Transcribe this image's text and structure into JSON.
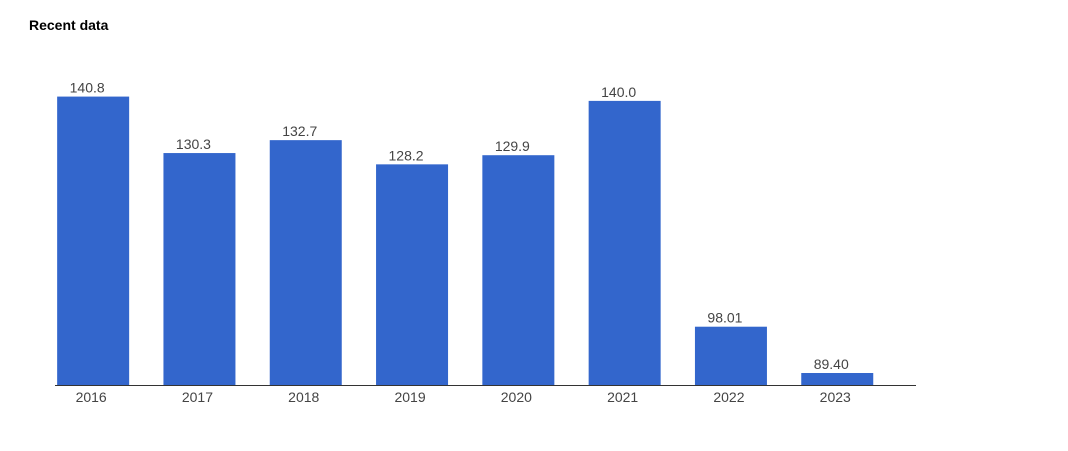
{
  "chart_data": {
    "type": "bar",
    "title": "Recent data",
    "categories": [
      "2016",
      "2017",
      "2018",
      "2019",
      "2020",
      "2021",
      "2022",
      "2023"
    ],
    "values": [
      140.8,
      130.3,
      132.7,
      128.2,
      129.9,
      140.0,
      98.01,
      89.4
    ],
    "value_labels": [
      "140.8",
      "130.3",
      "132.7",
      "128.2",
      "129.9",
      "140.0",
      "98.01",
      "89.40"
    ],
    "color": "#3366cc",
    "ylim": [
      87.17,
      145
    ]
  }
}
